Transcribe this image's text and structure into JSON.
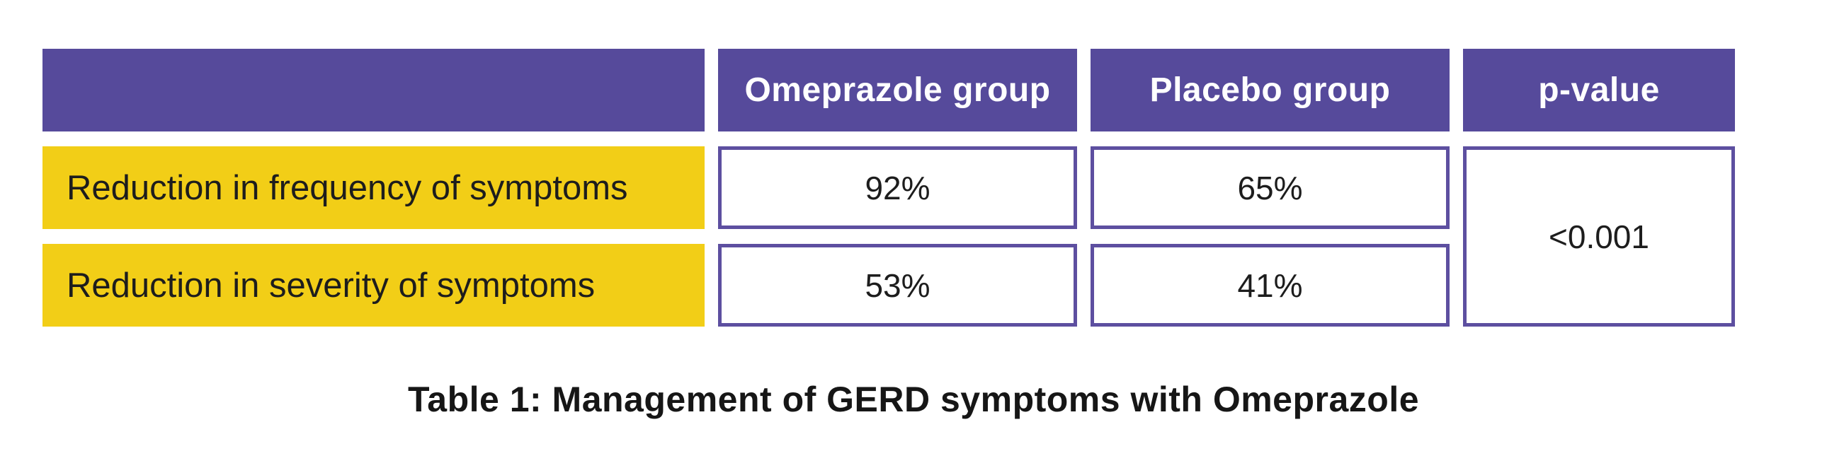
{
  "figure": {
    "caption": "Table 1: Management of GERD symptoms with Omeprazole"
  },
  "table": {
    "columns": [
      "",
      "Omeprazole group",
      "Placebo group",
      "p-value"
    ],
    "rows": [
      {
        "label": "Reduction in frequency of symptoms",
        "omeprazole": "92%",
        "placebo": "65%"
      },
      {
        "label": "Reduction in severity of symptoms",
        "omeprazole": "53%",
        "placebo": "41%"
      }
    ],
    "p_value": "<0.001"
  },
  "chart_data": {
    "type": "table",
    "title": "Table 1: Management of GERD symptoms with Omeprazole",
    "columns": [
      "",
      "Omeprazole group",
      "Placebo group",
      "p-value"
    ],
    "rows": [
      [
        "Reduction in frequency of symptoms",
        "92%",
        "65%",
        "<0.001"
      ],
      [
        "Reduction in severity of symptoms",
        "53%",
        "41%",
        "<0.001"
      ]
    ],
    "merged_cells": [
      {
        "column": "p-value",
        "value": "<0.001",
        "spans_rows": [
          1,
          2
        ]
      }
    ]
  },
  "colors": {
    "header_bg": "#564a9b",
    "row_label_bg": "#f2ce17",
    "cell_border": "#5d4fa0",
    "header_text": "#ffffff",
    "body_text": "#1d1d1d",
    "background": "#ffffff"
  }
}
